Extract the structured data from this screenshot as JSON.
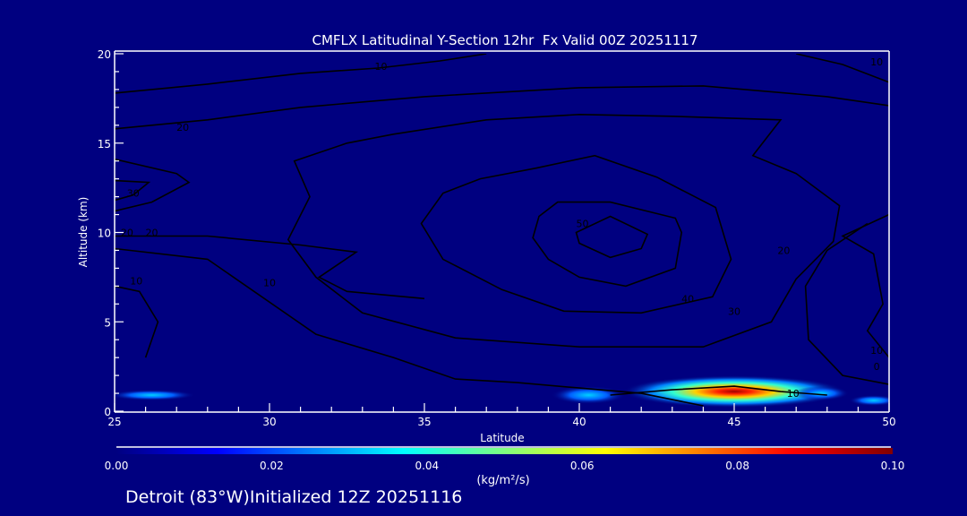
{
  "chart_data": {
    "type": "heatmap",
    "title": "CMFLX Latitudinal Y-Section 12hr  Fx Valid 00Z 20251117",
    "xlabel": "Latitude",
    "ylabel": "Altitude (km)",
    "xlim": [
      25,
      50
    ],
    "ylim": [
      0,
      20
    ],
    "xticks": [
      "25",
      "30",
      "35",
      "40",
      "45",
      "50"
    ],
    "yticks": [
      "0",
      "5",
      "10",
      "15",
      "20"
    ],
    "colorbar": {
      "ticks": [
        "0.00",
        "0.02",
        "0.04",
        "0.06",
        "0.08",
        "0.10"
      ],
      "range": [
        0,
        0.1
      ],
      "units": "(kg/m²/s)",
      "colors": [
        "#000080",
        "#0000ff",
        "#00ffff",
        "#ffff00",
        "#ff0000",
        "#800000"
      ]
    },
    "fill_regions": [
      {
        "lat": 45.0,
        "alt": 1.1,
        "lat_halfwidth": 3.6,
        "alt_halfwidth": 0.9,
        "peak": 0.09
      },
      {
        "lat": 40.3,
        "alt": 0.9,
        "lat_halfwidth": 1.2,
        "alt_halfwidth": 0.5,
        "peak": 0.03
      },
      {
        "lat": 47.8,
        "alt": 1.0,
        "lat_halfwidth": 0.9,
        "alt_halfwidth": 0.4,
        "peak": 0.035
      },
      {
        "lat": 26.2,
        "alt": 0.9,
        "lat_halfwidth": 1.4,
        "alt_halfwidth": 0.3,
        "peak": 0.015
      },
      {
        "lat": 49.5,
        "alt": 0.6,
        "lat_halfwidth": 0.8,
        "alt_halfwidth": 0.3,
        "peak": 0.02
      }
    ],
    "contours": [
      {
        "level": "50",
        "closed": true,
        "label_at": [
          40.1,
          10.3
        ],
        "points": [
          [
            39.9,
            10.0
          ],
          [
            41.0,
            10.9
          ],
          [
            42.2,
            9.9
          ],
          [
            42.0,
            9.1
          ],
          [
            41.0,
            8.6
          ],
          [
            40.0,
            9.4
          ]
        ]
      },
      {
        "level": "40",
        "closed": true,
        "label_at": [
          43.5,
          6.1
        ],
        "points": [
          [
            38.7,
            10.9
          ],
          [
            39.3,
            11.7
          ],
          [
            41.0,
            11.7
          ],
          [
            43.1,
            10.8
          ],
          [
            43.3,
            10.0
          ],
          [
            43.1,
            8.0
          ],
          [
            41.5,
            7.0
          ],
          [
            40.0,
            7.5
          ],
          [
            39.0,
            8.5
          ],
          [
            38.5,
            9.7
          ]
        ]
      },
      {
        "level": "30",
        "closed": true,
        "label_at": [
          45.0,
          5.4
        ],
        "points": [
          [
            36.8,
            13.0
          ],
          [
            38.6,
            13.6
          ],
          [
            40.5,
            14.3
          ],
          [
            42.5,
            13.1
          ],
          [
            44.4,
            11.4
          ],
          [
            44.9,
            8.5
          ],
          [
            44.3,
            6.4
          ],
          [
            42.0,
            5.5
          ],
          [
            39.5,
            5.6
          ],
          [
            37.5,
            6.8
          ],
          [
            35.6,
            8.5
          ],
          [
            34.9,
            10.5
          ],
          [
            35.6,
            12.2
          ]
        ]
      },
      {
        "level": "20",
        "closed": true,
        "label_at": [
          46.6,
          8.8
        ],
        "points": [
          [
            34.0,
            15.5
          ],
          [
            37.0,
            16.3
          ],
          [
            40.0,
            16.6
          ],
          [
            43.0,
            16.5
          ],
          [
            46.5,
            16.3
          ],
          [
            45.6,
            14.3
          ],
          [
            47.0,
            13.3
          ],
          [
            48.4,
            11.5
          ],
          [
            48.2,
            9.5
          ],
          [
            47.0,
            7.4
          ],
          [
            46.2,
            5.0
          ],
          [
            44.0,
            3.6
          ],
          [
            40.0,
            3.6
          ],
          [
            36.0,
            4.1
          ],
          [
            33.0,
            5.5
          ],
          [
            31.5,
            7.5
          ],
          [
            30.6,
            9.6
          ],
          [
            31.3,
            12.0
          ],
          [
            30.8,
            14.0
          ],
          [
            32.5,
            15.0
          ]
        ]
      },
      {
        "level": "10",
        "closed": false,
        "label_at": [
          33.6,
          19.1
        ],
        "points": [
          [
            25.0,
            17.8
          ],
          [
            28.0,
            18.3
          ],
          [
            31.0,
            18.9
          ],
          [
            33.5,
            19.2
          ],
          [
            35.5,
            19.6
          ],
          [
            37.0,
            20.0
          ]
        ]
      },
      {
        "level": "20",
        "closed": false,
        "label_at": [
          27.2,
          15.7
        ],
        "points": [
          [
            25.0,
            15.8
          ],
          [
            28.0,
            16.3
          ],
          [
            31.0,
            17.0
          ],
          [
            35.0,
            17.6
          ],
          [
            40.0,
            18.1
          ],
          [
            44.0,
            18.2
          ],
          [
            48.0,
            17.6
          ],
          [
            50.0,
            17.1
          ]
        ]
      },
      {
        "level": "30",
        "closed": false,
        "label_at": [
          25.6,
          12.0
        ],
        "points": [
          [
            25.0,
            12.9
          ],
          [
            26.1,
            12.8
          ],
          [
            25.6,
            12.1
          ],
          [
            25.0,
            11.8
          ]
        ]
      },
      {
        "level": "20",
        "closed": false,
        "label_at": [
          26.2,
          9.8
        ],
        "points": [
          [
            25.0,
            14.1
          ],
          [
            27.0,
            13.3
          ],
          [
            27.4,
            12.8
          ],
          [
            26.2,
            11.7
          ],
          [
            25.0,
            11.2
          ]
        ]
      },
      {
        "level": "20",
        "closed": false,
        "label_at": [
          25.4,
          9.8
        ],
        "points": [
          [
            25.0,
            9.8
          ],
          [
            28.0,
            9.8
          ],
          [
            31.0,
            9.3
          ],
          [
            32.8,
            8.9
          ],
          [
            31.6,
            7.5
          ],
          [
            32.5,
            6.7
          ],
          [
            35.0,
            6.3
          ]
        ]
      },
      {
        "level": "10",
        "closed": false,
        "label_at": [
          25.7,
          7.1
        ],
        "points": [
          [
            25.0,
            9.1
          ],
          [
            28.0,
            8.5
          ],
          [
            31.5,
            4.3
          ],
          [
            34.0,
            3.0
          ],
          [
            36.0,
            1.8
          ],
          [
            38.0,
            1.6
          ],
          [
            40.0,
            1.3
          ],
          [
            42.0,
            1.0
          ],
          [
            44.0,
            0.3
          ]
        ]
      },
      {
        "level": "10",
        "closed": false,
        "label_at": [
          30,
          7
        ],
        "points": [
          [
            25.0,
            7.0
          ],
          [
            25.8,
            6.7
          ],
          [
            26.4,
            5.0
          ],
          [
            26.0,
            3.0
          ]
        ]
      },
      {
        "level": "10",
        "closed": false,
        "label_at": [
          49.6,
          20
        ],
        "points": [
          [
            47.0,
            20.0
          ],
          [
            48.5,
            19.4
          ],
          [
            50.0,
            18.4
          ]
        ]
      },
      {
        "level": "10",
        "closed": false,
        "label_at": [
          49.6,
          3.2
        ],
        "points": [
          [
            50.0,
            11.0
          ],
          [
            48.5,
            9.8
          ],
          [
            49.5,
            8.8
          ],
          [
            49.8,
            6.0
          ],
          [
            49.3,
            4.5
          ],
          [
            50.0,
            3.0
          ]
        ]
      },
      {
        "level": "10",
        "closed": false,
        "label_at": [
          46.9,
          0.8
        ],
        "points": [
          [
            41.0,
            0.9
          ],
          [
            43.0,
            1.2
          ],
          [
            45.0,
            1.4
          ],
          [
            46.5,
            1.1
          ],
          [
            48.0,
            0.9
          ]
        ]
      },
      {
        "level": "0",
        "closed": false,
        "label_at": [
          49.6,
          3.0
        ],
        "points": [
          [
            49.3,
            10.5
          ],
          [
            48.0,
            9.0
          ],
          [
            47.3,
            7.0
          ],
          [
            47.4,
            4.0
          ],
          [
            48.5,
            2.0
          ],
          [
            50.0,
            1.5
          ]
        ]
      }
    ]
  },
  "footer": {
    "location": "Detroit (83°W)Initialized 12Z 20251116"
  }
}
